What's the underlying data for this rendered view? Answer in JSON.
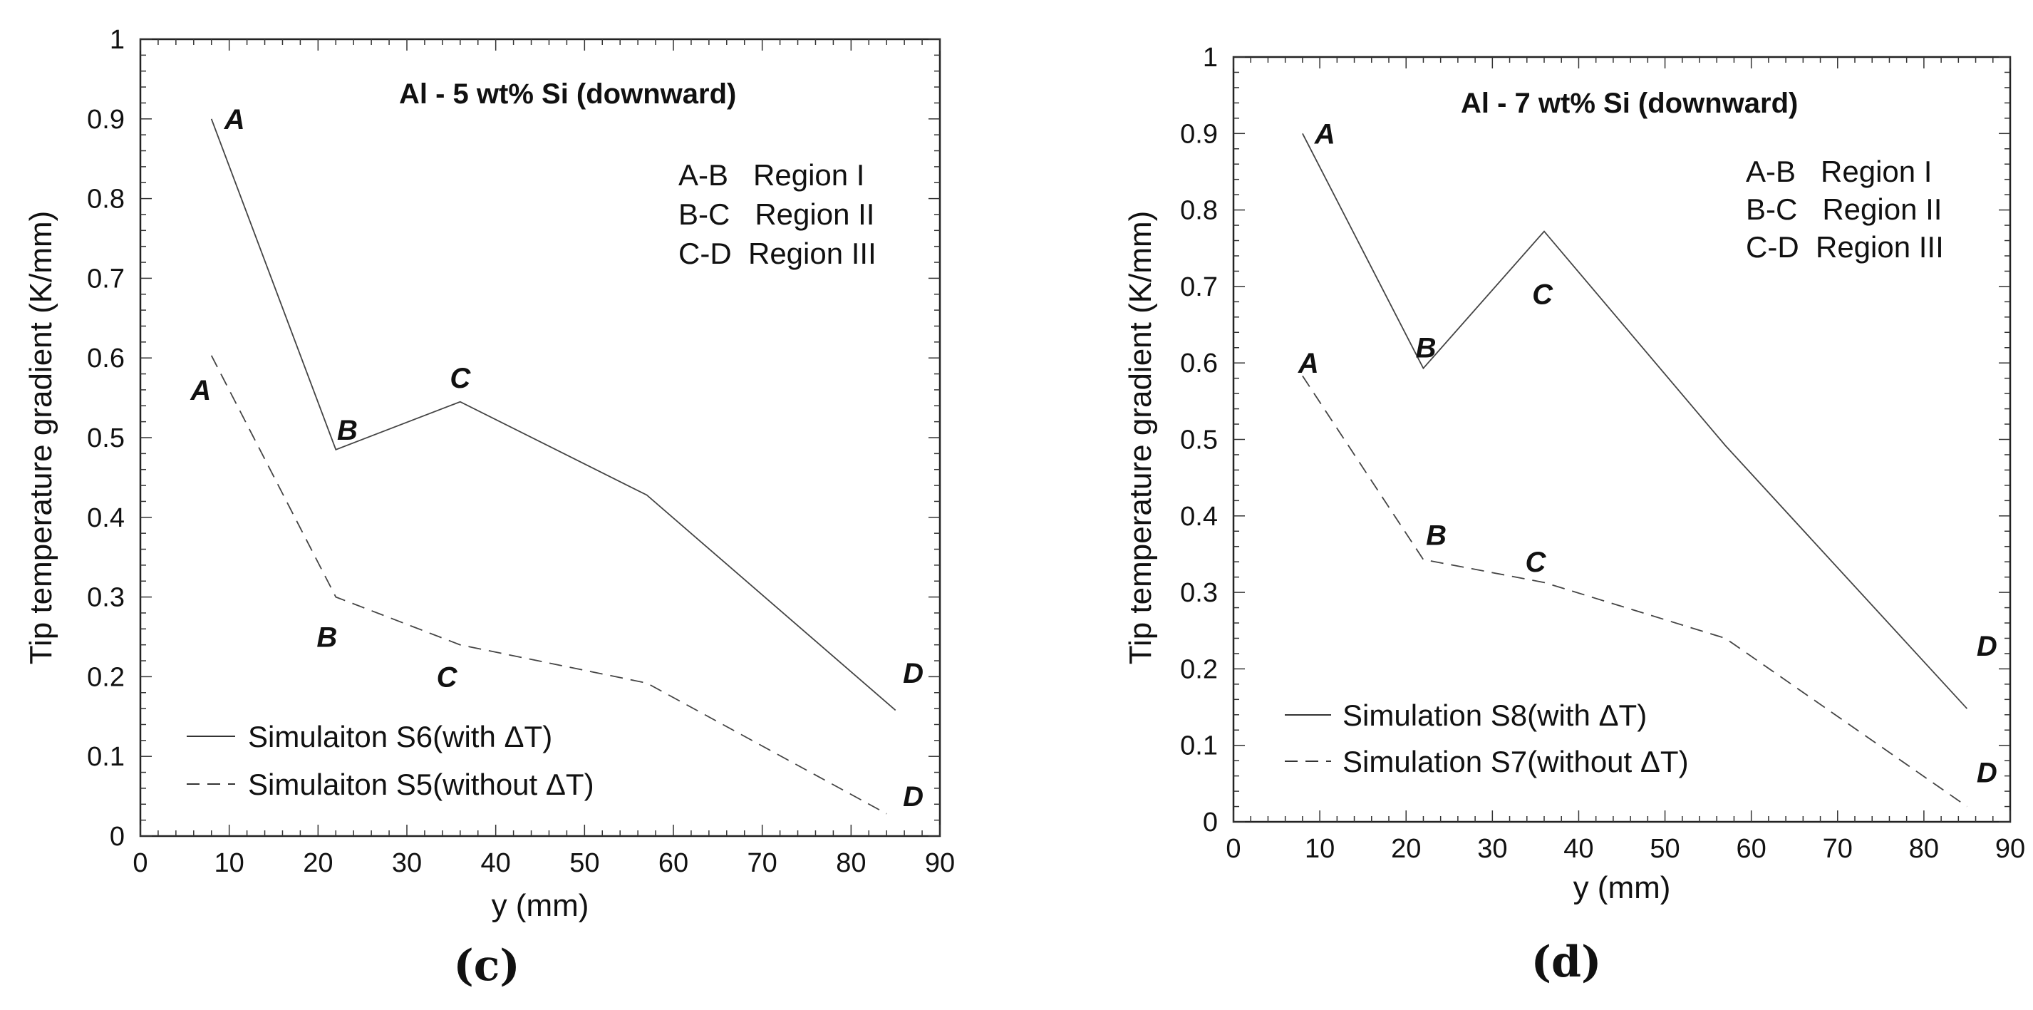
{
  "chart_data": [
    {
      "type": "line",
      "panel_label": "(c)",
      "title": "Al - 5 wt% Si (downward)",
      "xlabel": "y (mm)",
      "ylabel": "Tip temperature gradient (K/mm)",
      "xlim": [
        0,
        90
      ],
      "ylim": [
        0,
        1
      ],
      "x_ticks": [
        0,
        10,
        20,
        30,
        40,
        50,
        60,
        70,
        80,
        90
      ],
      "x_tick_labels": [
        "0",
        "10",
        "20",
        "30",
        "40",
        "50",
        "60",
        "70",
        "80",
        "90"
      ],
      "y_ticks": [
        0,
        0.1,
        0.2,
        0.3,
        0.4,
        0.5,
        0.6,
        0.7,
        0.8,
        0.9,
        1
      ],
      "y_tick_labels": [
        "0",
        "0.1",
        "0.2",
        "0.3",
        "0.4",
        "0.5",
        "0.6",
        "0.7",
        "0.8",
        "0.9",
        "1"
      ],
      "regions": [
        "A-B   Region I",
        "B-C   Region II",
        "C-D  Region III"
      ],
      "series": [
        {
          "name": "Simulaiton S6(with ΔT)",
          "style": "solid",
          "x": [
            8,
            22,
            36,
            57,
            85
          ],
          "y": [
            0.9,
            0.485,
            0.545,
            0.428,
            0.158
          ]
        },
        {
          "name": "Simulaiton S5(without ΔT)",
          "style": "dashed",
          "x": [
            8,
            22,
            36,
            57,
            84
          ],
          "y": [
            0.603,
            0.3,
            0.24,
            0.192,
            0.028
          ]
        }
      ],
      "annotations": [
        {
          "text": "A",
          "x": 10.6,
          "y": 0.9
        },
        {
          "text": "B",
          "x": 23.3,
          "y": 0.51
        },
        {
          "text": "C",
          "x": 36.0,
          "y": 0.575
        },
        {
          "text": "D",
          "x": 87.0,
          "y": 0.205
        },
        {
          "text": "A",
          "x": 6.8,
          "y": 0.56
        },
        {
          "text": "B",
          "x": 21.0,
          "y": 0.25
        },
        {
          "text": "C",
          "x": 34.5,
          "y": 0.2
        },
        {
          "text": "D",
          "x": 87.0,
          "y": 0.05
        }
      ]
    },
    {
      "type": "line",
      "panel_label": "(d)",
      "title": "Al - 7 wt% Si (downward)",
      "xlabel": "y (mm)",
      "ylabel": "Tip temperature gradient (K/mm)",
      "xlim": [
        0,
        90
      ],
      "ylim": [
        0,
        1
      ],
      "x_ticks": [
        0,
        10,
        20,
        30,
        40,
        50,
        60,
        70,
        80,
        90
      ],
      "x_tick_labels": [
        "0",
        "10",
        "20",
        "30",
        "40",
        "50",
        "60",
        "70",
        "80",
        "90"
      ],
      "y_ticks": [
        0,
        0.1,
        0.2,
        0.3,
        0.4,
        0.5,
        0.6,
        0.7,
        0.8,
        0.9,
        1
      ],
      "y_tick_labels": [
        "0",
        "0.1",
        "0.2",
        "0.3",
        "0.4",
        "0.5",
        "0.6",
        "0.7",
        "0.8",
        "0.9",
        "1"
      ],
      "regions": [
        "A-B   Region I",
        "B-C   Region II",
        "C-D  Region III"
      ],
      "series": [
        {
          "name": "Simulation S8(with ΔT)",
          "style": "solid",
          "x": [
            8,
            22,
            36,
            57,
            85
          ],
          "y": [
            0.9,
            0.593,
            0.772,
            0.492,
            0.148
          ]
        },
        {
          "name": "Simulation S7(without ΔT)",
          "style": "dashed",
          "x": [
            8,
            22,
            36,
            57,
            85
          ],
          "y": [
            0.583,
            0.343,
            0.313,
            0.24,
            0.02
          ]
        }
      ],
      "annotations": [
        {
          "text": "A",
          "x": 10.6,
          "y": 0.9
        },
        {
          "text": "B",
          "x": 22.3,
          "y": 0.62
        },
        {
          "text": "C",
          "x": 35.8,
          "y": 0.69
        },
        {
          "text": "D",
          "x": 87.3,
          "y": 0.23
        },
        {
          "text": "A",
          "x": 8.7,
          "y": 0.6
        },
        {
          "text": "B",
          "x": 23.5,
          "y": 0.375
        },
        {
          "text": "C",
          "x": 35.0,
          "y": 0.34
        },
        {
          "text": "D",
          "x": 87.3,
          "y": 0.065
        }
      ]
    }
  ]
}
